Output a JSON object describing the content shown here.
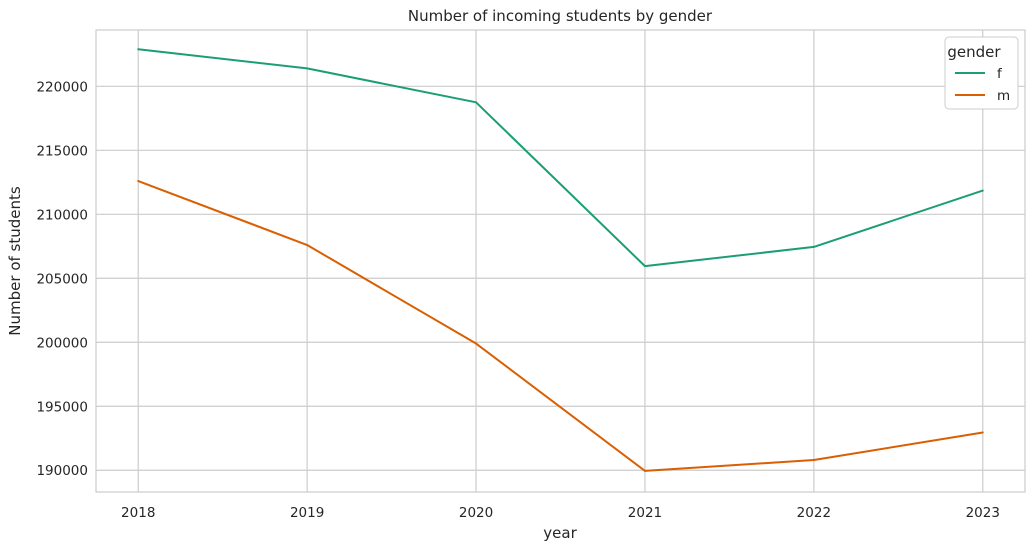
{
  "chart_data": {
    "type": "line",
    "title": "Number of incoming students by gender",
    "xlabel": "year",
    "ylabel": "Number of students",
    "x": [
      2018,
      2019,
      2020,
      2021,
      2022,
      2023
    ],
    "y_ticks": [
      190000,
      195000,
      200000,
      205000,
      210000,
      215000,
      220000
    ],
    "ylim": [
      188300,
      224400
    ],
    "grid": true,
    "legend": {
      "title": "gender",
      "placement": "top-right"
    },
    "series": [
      {
        "name": "f",
        "color": "#1b9e77",
        "values": [
          222900,
          221400,
          218750,
          205950,
          207450,
          211850
        ]
      },
      {
        "name": "m",
        "color": "#d95f02",
        "values": [
          212600,
          207600,
          199900,
          189950,
          190800,
          192950
        ]
      }
    ]
  }
}
